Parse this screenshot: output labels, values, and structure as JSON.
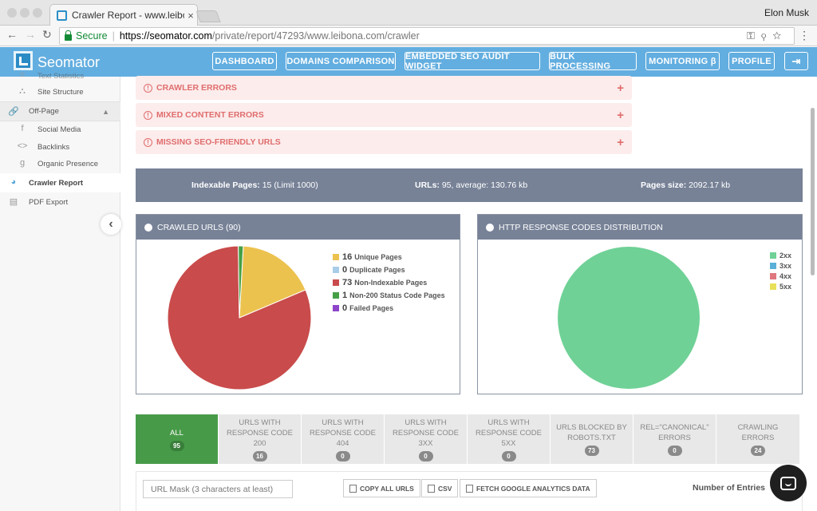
{
  "browser": {
    "tab_title": "Crawler Report - www.leibona",
    "user": "Elon Musk",
    "secure_label": "Secure",
    "url_main": "https://seomator.com",
    "url_rest": "/private/report/47293/www.leibona.com/crawler"
  },
  "header": {
    "logo": "Seomator",
    "nav": [
      "DASHBOARD",
      "DOMAINS COMPARISON",
      "EMBEDDED SEO AUDIT WIDGET",
      "BULK PROCESSING",
      "MONITORING β",
      "PROFILE"
    ]
  },
  "sidebar": {
    "items": [
      "Text Statistics",
      "Site Structure",
      "Off-Page",
      "Social Media",
      "Backlinks",
      "Organic Presence",
      "Crawler Report",
      "PDF Export"
    ]
  },
  "errors": [
    "CRAWLER ERRORS",
    "MIXED CONTENT ERRORS",
    "MISSING SEO-FRIENDLY URLS"
  ],
  "stats": {
    "indexable_label": "Indexable Pages:",
    "indexable_value": "15 (Limit 1000)",
    "urls_label": "URLs:",
    "urls_value": "95, average: 130.76 kb",
    "size_label": "Pages size:",
    "size_value": "2092.17 kb"
  },
  "crawled_panel": {
    "title": "CRAWLED URLS (90)",
    "legend": [
      {
        "value": "16",
        "label": "Unique Pages",
        "color": "#ecc24f"
      },
      {
        "value": "0",
        "label": "Duplicate Pages",
        "color": "#a9cde8"
      },
      {
        "value": "73",
        "label": "Non-Indexable Pages",
        "color": "#c94b4b"
      },
      {
        "value": "1",
        "label": "Non-200 Status Code Pages",
        "color": "#45a045"
      },
      {
        "value": "0",
        "label": "Failed Pages",
        "color": "#8d45c9"
      }
    ]
  },
  "http_panel": {
    "title": "HTTP RESPONSE CODES DISTRIBUTION",
    "legend": [
      {
        "label": "2xx",
        "color": "#6fd196"
      },
      {
        "label": "3xx",
        "color": "#5ab0d8"
      },
      {
        "label": "4xx",
        "color": "#e0777f"
      },
      {
        "label": "5xx",
        "color": "#e8e05a"
      }
    ]
  },
  "chart_data": [
    {
      "type": "pie",
      "title": "CRAWLED URLS (90)",
      "categories": [
        "Unique Pages",
        "Duplicate Pages",
        "Non-Indexable Pages",
        "Non-200 Status Code Pages",
        "Failed Pages"
      ],
      "values": [
        16,
        0,
        73,
        1,
        0
      ],
      "colors": [
        "#ecc24f",
        "#a9cde8",
        "#c94b4b",
        "#45a045",
        "#8d45c9"
      ]
    },
    {
      "type": "pie",
      "title": "HTTP RESPONSE CODES DISTRIBUTION",
      "categories": [
        "2xx",
        "3xx",
        "4xx",
        "5xx"
      ],
      "values": [
        1,
        0,
        0,
        0
      ],
      "colors": [
        "#6fd196",
        "#5ab0d8",
        "#e0777f",
        "#e8e05a"
      ]
    }
  ],
  "filter_tabs": [
    {
      "label": "ALL",
      "count": "95"
    },
    {
      "label": "URLS WITH RESPONSE CODE 200",
      "count": "16"
    },
    {
      "label": "URLS WITH RESPONSE CODE 404",
      "count": "0"
    },
    {
      "label": "URLS WITH RESPONSE CODE 3XX",
      "count": "0"
    },
    {
      "label": "URLS WITH RESPONSE CODE 5XX",
      "count": "0"
    },
    {
      "label": "URLS BLOCKED BY ROBOTS.TXT",
      "count": "73"
    },
    {
      "label": "REL=\"CANONICAL\" ERRORS",
      "count": "0"
    },
    {
      "label": "CRAWLING ERRORS",
      "count": "24"
    }
  ],
  "table_controls": {
    "mask_placeholder": "URL Mask (3 characters at least)",
    "copy": "COPY ALL URLS",
    "csv": "CSV",
    "fetch": "FETCH GOOGLE ANALYTICS DATA",
    "entries": "Number of Entries"
  }
}
